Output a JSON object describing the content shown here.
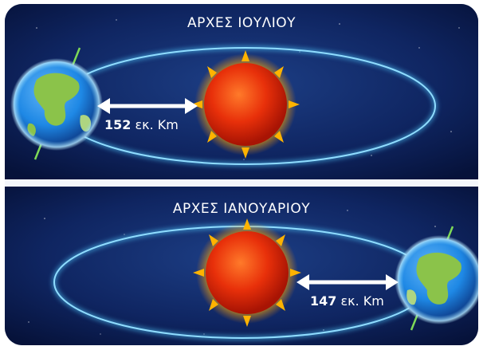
{
  "panels": [
    {
      "title": "ΑΡΧΕΣ ΙΟΥΛΙΟΥ",
      "distance_value": "152",
      "distance_unit": "εκ. Km"
    },
    {
      "title": "ΑΡΧΕΣ ΙΑΝΟΥΑΡΙΟΥ",
      "distance_value": "147",
      "distance_unit": "εκ. Km"
    }
  ],
  "colors": {
    "background": "#0a1a4a",
    "orbit": "#4fc3f7",
    "sun": "#e8300a",
    "sun_glow": "#ffb300",
    "earth_ocean": "#1e88e5",
    "earth_land": "#8bc34a",
    "arrow": "#ffffff",
    "separator": "#f4f6fb"
  },
  "icons": [
    "sun-icon",
    "earth-icon",
    "distance-arrow-icon"
  ]
}
